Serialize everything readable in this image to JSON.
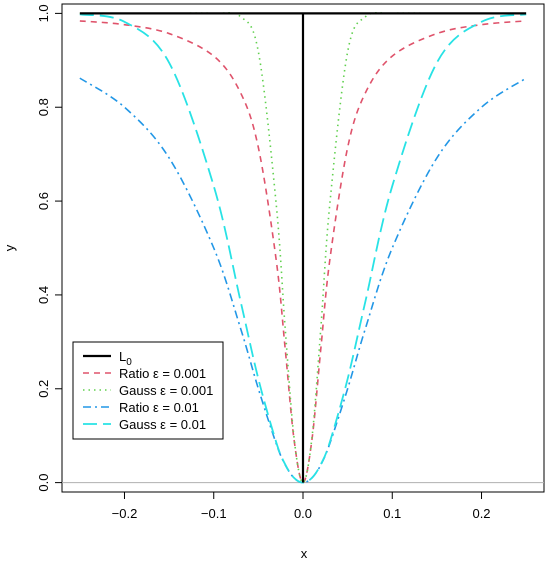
{
  "chart_data": {
    "type": "line",
    "title": "",
    "xlabel": "x",
    "ylabel": "y",
    "xlim": [
      -0.27,
      0.27
    ],
    "ylim": [
      -0.02,
      1.02
    ],
    "x_ticks": [
      -0.2,
      -0.1,
      0.0,
      0.1,
      0.2
    ],
    "x_tick_labels": [
      "−0.2",
      "−0.1",
      "0.0",
      "0.1",
      "0.2"
    ],
    "y_ticks": [
      0.0,
      0.2,
      0.4,
      0.6,
      0.8,
      1.0
    ],
    "y_tick_labels": [
      "0.0",
      "0.2",
      "0.4",
      "0.6",
      "0.8",
      "1.0"
    ],
    "grid": false,
    "reference_line_y": 0,
    "legend_position": "bottom-left",
    "x": [
      -0.25,
      -0.2,
      -0.15,
      -0.1,
      -0.07,
      -0.05,
      -0.03,
      -0.02,
      -0.01,
      0.0,
      0.01,
      0.02,
      0.03,
      0.05,
      0.07,
      0.1,
      0.15,
      0.2,
      0.25
    ],
    "series": [
      {
        "name": "L₀",
        "legend_label": "L",
        "legend_sub": "0",
        "color": "#000000",
        "dash": "",
        "width": 2.2,
        "kind": "step",
        "values": [
          1,
          1,
          1,
          1,
          1,
          1,
          1,
          1,
          1,
          0,
          1,
          1,
          1,
          1,
          1,
          1,
          1,
          1,
          1
        ]
      },
      {
        "name": "Ratio ε = 0.001",
        "legend_label": "Ratio ε = 0.001",
        "color": "#df536b",
        "dash": "6,5",
        "width": 1.6,
        "values": [
          0.984,
          0.976,
          0.957,
          0.909,
          0.831,
          0.714,
          0.474,
          0.286,
          0.091,
          0.0,
          0.091,
          0.286,
          0.474,
          0.714,
          0.831,
          0.909,
          0.957,
          0.976,
          0.984
        ]
      },
      {
        "name": "Gauss ε = 0.001",
        "legend_label": "Gauss ε = 0.001",
        "color": "#61d04f",
        "dash": "1.5,4",
        "width": 1.6,
        "values": [
          1.0,
          1.0,
          1.0,
          1.0,
          0.993,
          0.918,
          0.593,
          0.33,
          0.095,
          0.0,
          0.095,
          0.33,
          0.593,
          0.918,
          0.993,
          1.0,
          1.0,
          1.0,
          1.0
        ]
      },
      {
        "name": "Ratio ε = 0.01",
        "legend_label": "Ratio ε = 0.01",
        "color": "#2297e6",
        "dash": "8,4,2,4",
        "width": 1.6,
        "values": [
          0.862,
          0.8,
          0.692,
          0.5,
          0.329,
          0.2,
          0.083,
          0.038,
          0.01,
          0.0,
          0.01,
          0.038,
          0.083,
          0.2,
          0.329,
          0.5,
          0.692,
          0.8,
          0.862
        ]
      },
      {
        "name": "Gauss ε = 0.01",
        "legend_label": "Gauss ε = 0.01",
        "color": "#28e2e5",
        "dash": "14,6",
        "width": 1.8,
        "values": [
          0.998,
          0.982,
          0.895,
          0.632,
          0.387,
          0.221,
          0.086,
          0.039,
          0.01,
          0.0,
          0.01,
          0.039,
          0.086,
          0.221,
          0.387,
          0.632,
          0.895,
          0.982,
          0.998
        ]
      }
    ]
  }
}
